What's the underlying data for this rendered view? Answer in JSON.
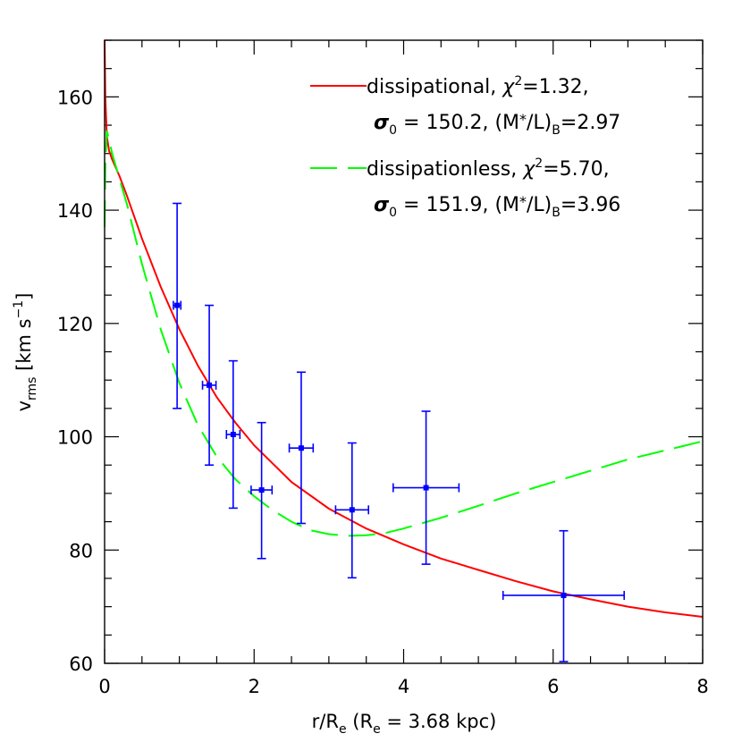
{
  "chart_data": {
    "type": "scatter",
    "xlabel": {
      "main": "r/R",
      "sub": "e",
      "rest_open": " (R",
      "rest_sub": "e",
      "rest_close": " = 3.68 kpc)"
    },
    "ylabel": {
      "main": "v",
      "sub": "rms",
      "rest": " [km s",
      "sup": "−1",
      "close": "]"
    },
    "xlim": [
      0,
      8
    ],
    "ylim": [
      60,
      170
    ],
    "xticks": [
      "0",
      "2",
      "4",
      "6",
      "8"
    ],
    "yticks": [
      "60",
      "80",
      "100",
      "120",
      "140",
      "160"
    ],
    "grid": false,
    "legend_placement": "top-right",
    "series": [
      {
        "id": "dissipational",
        "color": "#ff0000",
        "style": "solid",
        "legend_line1_a": "dissipational, ",
        "legend_line1_b": "χ",
        "legend_line1_sup": "2",
        "legend_line1_c": "=1.32,",
        "legend_line2_a": "σ",
        "legend_line2_sub": "0",
        "legend_line2_b": " = 150.2, (M",
        "legend_line2_star": "*",
        "legend_line2_c": "/L)",
        "legend_line2_sub2": "B",
        "legend_line2_d": "=2.97",
        "x": [
          0.0,
          0.01,
          0.03,
          0.06,
          0.1,
          0.2,
          0.3,
          0.5,
          0.75,
          1.0,
          1.25,
          1.5,
          1.75,
          2.0,
          2.5,
          3.0,
          3.5,
          4.0,
          4.5,
          5.0,
          5.5,
          6.0,
          6.5,
          7.0,
          7.5,
          8.0
        ],
        "y": [
          170,
          160,
          153,
          150.5,
          149,
          146,
          142.5,
          135,
          126.5,
          119,
          112.5,
          107,
          102.5,
          98.5,
          92,
          87.3,
          83.8,
          81,
          78.5,
          76.5,
          74.5,
          72.7,
          71.3,
          70,
          69,
          68.2
        ]
      },
      {
        "id": "dissipationless",
        "color": "#00ff00",
        "style": "dashed",
        "legend_line1_a": "dissipationless, ",
        "legend_line1_b": "χ",
        "legend_line1_sup": "2",
        "legend_line1_c": "=5.70,",
        "legend_line2_a": "σ",
        "legend_line2_sub": "0",
        "legend_line2_b": " = 151.9, (M",
        "legend_line2_star": "*",
        "legend_line2_c": "/L)",
        "legend_line2_sub2": "B",
        "legend_line2_d": "=3.96",
        "x": [
          0.0,
          0.01,
          0.03,
          0.06,
          0.1,
          0.2,
          0.3,
          0.5,
          0.75,
          1.0,
          1.25,
          1.5,
          1.75,
          2.0,
          2.25,
          2.5,
          2.75,
          3.0,
          3.25,
          3.5,
          3.75,
          4.0,
          4.5,
          5.0,
          5.5,
          6.0,
          6.5,
          7.0,
          7.5,
          8.0
        ],
        "y": [
          137,
          148,
          154,
          152.5,
          150,
          145.5,
          141,
          130.5,
          119,
          109.5,
          102,
          96.5,
          92.5,
          89.5,
          87,
          85,
          83.5,
          82.8,
          82.5,
          82.6,
          83,
          83.8,
          85.7,
          87.8,
          90,
          92,
          94,
          96,
          97.6,
          99.2
        ]
      },
      {
        "id": "data",
        "color": "#0000ff",
        "style": "points",
        "points": [
          {
            "x": 0.97,
            "y": 123.2,
            "xerr": 0.05,
            "yerr_low": 18.2,
            "yerr_high": 18.0
          },
          {
            "x": 1.4,
            "y": 109.1,
            "xerr": 0.09,
            "yerr_low": 14.1,
            "yerr_high": 14.1
          },
          {
            "x": 1.72,
            "y": 100.4,
            "xerr": 0.09,
            "yerr_low": 13.0,
            "yerr_high": 13.0
          },
          {
            "x": 2.1,
            "y": 90.6,
            "xerr": 0.14,
            "yerr_low": 12.1,
            "yerr_high": 11.9
          },
          {
            "x": 2.63,
            "y": 98.0,
            "xerr": 0.16,
            "yerr_low": 13.3,
            "yerr_high": 13.4
          },
          {
            "x": 3.31,
            "y": 87.1,
            "xerr": 0.22,
            "yerr_low": 12.0,
            "yerr_high": 11.8
          },
          {
            "x": 4.3,
            "y": 91.0,
            "xerr": 0.44,
            "yerr_low": 13.5,
            "yerr_high": 13.5
          },
          {
            "x": 6.14,
            "y": 72.0,
            "xerr": 0.81,
            "yerr_low": 11.7,
            "yerr_high": 11.4
          }
        ]
      }
    ]
  }
}
